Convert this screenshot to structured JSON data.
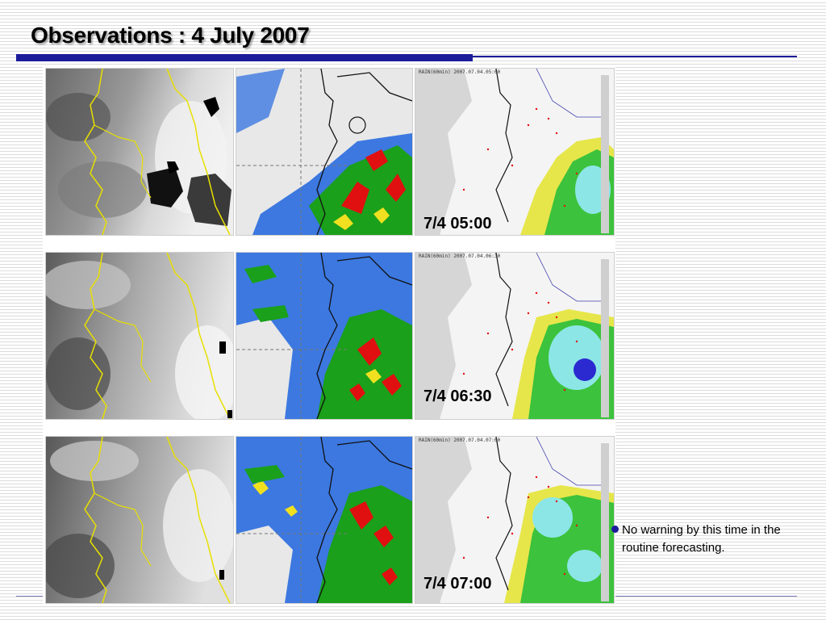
{
  "slide": {
    "title": "Observations : 4 July 2007",
    "note": "No warning by this time in the routine forecasting."
  },
  "rows": [
    {
      "time_label": "7/4 05:00",
      "map_header": "RAIN(60min)      2007.07.04.05:00"
    },
    {
      "time_label": "7/4 06:30",
      "map_header": "RAIN(60min)      2007.07.04.06:30"
    },
    {
      "time_label": "7/4 07:00",
      "map_header": "RAIN(60min)      2007.07.04.07:00"
    }
  ],
  "colors": {
    "accent": "#1c1c9a",
    "coastline": "#e8e000",
    "radar_blue": "#3c78e0",
    "radar_green": "#1aa01a",
    "radar_red": "#e01010",
    "rain_green": "#3cc23c",
    "rain_yellow": "#e6e64a",
    "rain_cyan": "#8ce6e6"
  }
}
